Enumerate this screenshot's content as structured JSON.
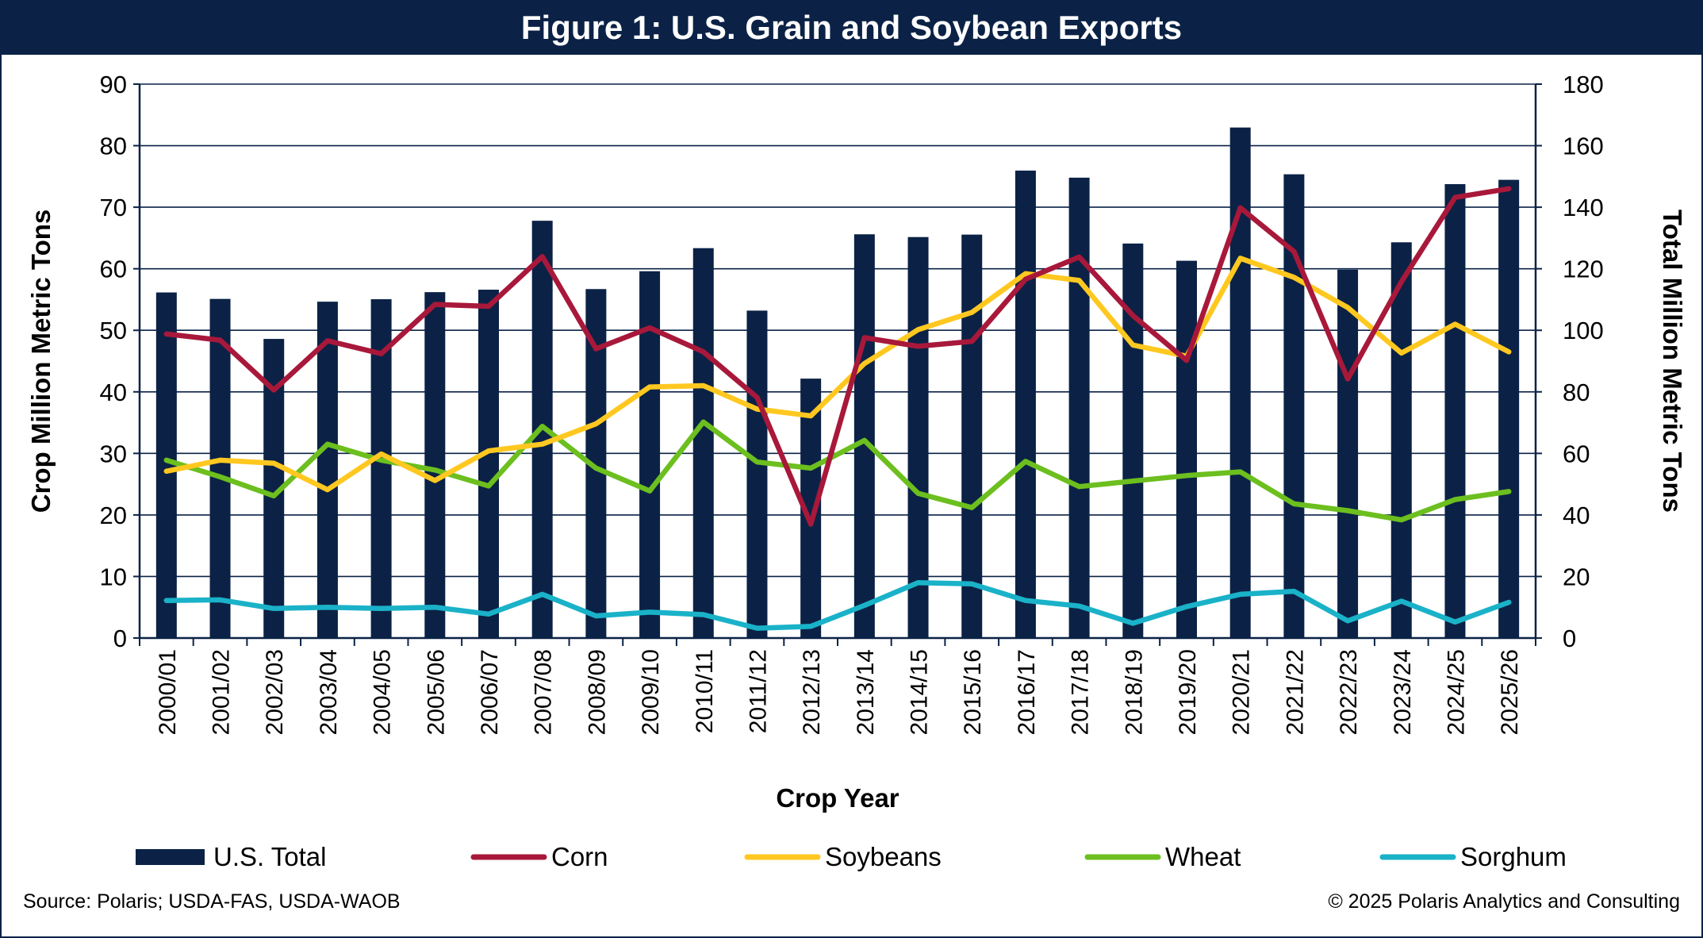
{
  "title": "Figure 1: U.S. Grain and Soybean Exports",
  "footer": {
    "source": "Source: Polaris; USDA-FAS, USDA-WAOB",
    "copyright": "© 2025 Polaris Analytics and Consulting"
  },
  "colors": {
    "navy": "#0b2246",
    "corn": "#a8183a",
    "soybeans": "#ffc820",
    "wheat": "#6cbf1e",
    "sorghum": "#1ab2c8"
  },
  "chart_data": {
    "type": "bar",
    "title": "Figure 1: U.S. Grain and Soybean Exports",
    "xlabel": "Crop Year",
    "ylabel": "Crop Million Metric Tons",
    "y2label": "Total Million Metric Tons",
    "ylim": [
      0,
      90
    ],
    "y2lim": [
      0,
      180
    ],
    "yticks": [
      0,
      10,
      20,
      30,
      40,
      50,
      60,
      70,
      80,
      90
    ],
    "y2ticks": [
      0,
      20,
      40,
      60,
      80,
      100,
      120,
      140,
      160,
      180
    ],
    "grid": true,
    "legend_position": "bottom",
    "categories": [
      "2000/01",
      "2001/02",
      "2002/03",
      "2003/04",
      "2004/05",
      "2005/06",
      "2006/07",
      "2007/08",
      "2008/09",
      "2009/10",
      "2010/11",
      "2011/12",
      "2012/13",
      "2013/14",
      "2014/15",
      "2015/16",
      "2016/17",
      "2017/18",
      "2018/19",
      "2019/20",
      "2020/21",
      "2021/22",
      "2022/23",
      "2023/24",
      "2024/25",
      "2025/26"
    ],
    "bar_series": {
      "name": "U.S. Total",
      "axis": "right",
      "values": [
        112.3,
        110.2,
        97.2,
        109.3,
        110.1,
        112.4,
        113.2,
        135.6,
        113.4,
        119.2,
        126.7,
        106.4,
        84.3,
        131.2,
        130.3,
        131.1,
        151.9,
        149.6,
        128.2,
        122.6,
        165.9,
        150.7,
        119.7,
        128.6,
        147.5,
        148.9
      ]
    },
    "series": [
      {
        "name": "Corn",
        "axis": "left",
        "values": [
          49.4,
          48.4,
          40.3,
          48.3,
          46.2,
          54.2,
          53.9,
          62.0,
          47.0,
          50.4,
          46.5,
          39.1,
          18.5,
          48.8,
          47.4,
          48.2,
          58.3,
          61.9,
          52.4,
          45.1,
          69.9,
          62.8,
          42.1,
          57.9,
          71.6,
          73.0
        ]
      },
      {
        "name": "Soybeans",
        "axis": "left",
        "values": [
          27.1,
          28.9,
          28.4,
          24.1,
          29.9,
          25.6,
          30.4,
          31.5,
          34.8,
          40.8,
          41.0,
          37.2,
          36.1,
          44.6,
          50.1,
          52.9,
          59.2,
          58.1,
          47.6,
          45.8,
          61.7,
          58.6,
          53.7,
          46.3,
          51.0,
          46.5
        ]
      },
      {
        "name": "Wheat",
        "axis": "left",
        "values": [
          28.9,
          26.2,
          23.1,
          31.5,
          28.9,
          27.3,
          24.7,
          34.4,
          27.6,
          23.9,
          35.1,
          28.6,
          27.6,
          32.1,
          23.5,
          21.2,
          28.7,
          24.6,
          25.5,
          26.4,
          27.0,
          21.8,
          20.7,
          19.2,
          22.5,
          23.8
        ]
      },
      {
        "name": "Sorghum",
        "axis": "left",
        "values": [
          6.1,
          6.2,
          4.8,
          5.0,
          4.8,
          5.0,
          3.9,
          7.1,
          3.6,
          4.2,
          3.8,
          1.6,
          1.9,
          5.3,
          9.0,
          8.8,
          6.1,
          5.2,
          2.4,
          5.1,
          7.1,
          7.6,
          2.8,
          6.0,
          2.6,
          5.8
        ]
      }
    ]
  }
}
